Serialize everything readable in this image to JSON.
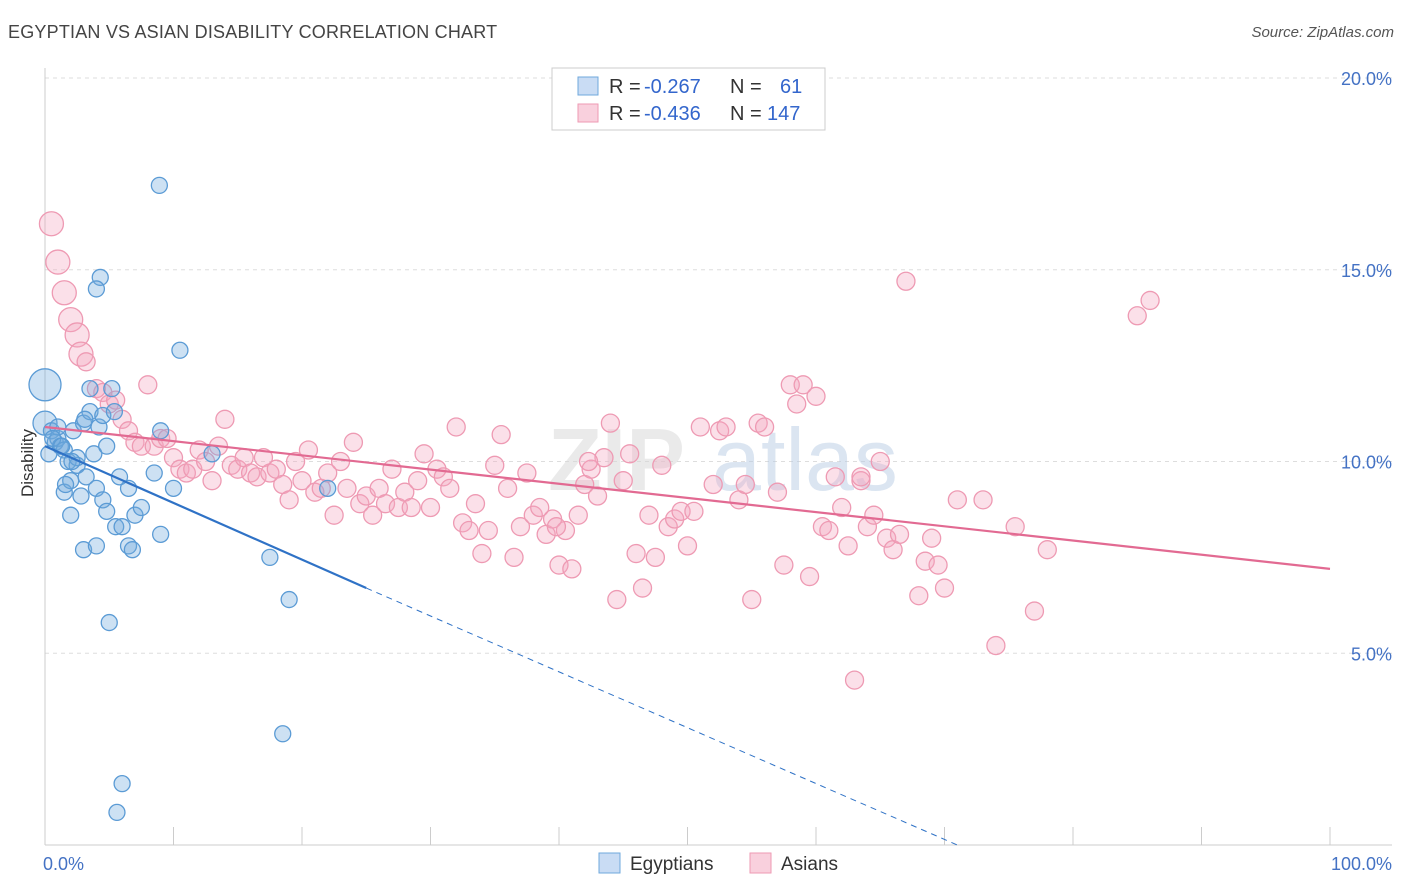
{
  "header": {
    "title": "EGYPTIAN VS ASIAN DISABILITY CORRELATION CHART",
    "source": "Source: ZipAtlas.com"
  },
  "watermark": {
    "zip": "ZIP",
    "atlas": "atlas"
  },
  "colors": {
    "egyptians": "#6fa8dc",
    "egyptians_line": "#2f72c6",
    "asians": "#ee9ab3",
    "asians_line": "#e26a92"
  },
  "legend": {
    "rows": [
      {
        "r_label": "R =",
        "r_value": "-0.267",
        "n_label": "N =",
        "n_value": "61"
      },
      {
        "r_label": "R =",
        "r_value": "-0.436",
        "n_label": "N =",
        "n_value": "147"
      }
    ],
    "bottom": [
      "Egyptians",
      "Asians"
    ]
  },
  "chart_data": {
    "type": "scatter",
    "title": "EGYPTIAN VS ASIAN DISABILITY CORRELATION CHART",
    "ylabel": "Disability",
    "xlabel": "",
    "xlim": [
      0,
      100
    ],
    "ylim": [
      0,
      20
    ],
    "x_tick_labels": [
      "0.0%",
      "100.0%"
    ],
    "y_ticks": [
      5,
      10,
      15,
      20
    ],
    "y_tick_labels": [
      "5.0%",
      "10.0%",
      "15.0%",
      "20.0%"
    ],
    "grid": "horizontal dashed",
    "legend_position": "top-center",
    "series": [
      {
        "name": "Egyptians",
        "R": -0.267,
        "N": 61,
        "trend": {
          "x_start": 0,
          "y_start": 10.4,
          "x_solid_end": 25,
          "y_solid_end": 6.7,
          "x_dashed_end": 71,
          "y_dashed_end": 0
        },
        "points": [
          [
            0,
            12
          ],
          [
            0,
            11
          ],
          [
            0.3,
            10.2
          ],
          [
            0.5,
            10.8
          ],
          [
            0.8,
            10.5
          ],
          [
            1,
            10.6
          ],
          [
            1.2,
            10.4
          ],
          [
            1.5,
            10.3
          ],
          [
            1.5,
            9.2
          ],
          [
            1.8,
            10
          ],
          [
            2,
            9.5
          ],
          [
            2,
            8.6
          ],
          [
            2.2,
            10.8
          ],
          [
            2.5,
            9.9
          ],
          [
            2.8,
            9.1
          ],
          [
            3,
            11
          ],
          [
            3,
            7.7
          ],
          [
            3.2,
            9.6
          ],
          [
            3.5,
            11.9
          ],
          [
            3.5,
            11.3
          ],
          [
            3.8,
            10.2
          ],
          [
            4,
            9.3
          ],
          [
            4,
            7.8
          ],
          [
            4.2,
            10.9
          ],
          [
            4.3,
            14.8
          ],
          [
            4.5,
            11.2
          ],
          [
            4.5,
            9
          ],
          [
            4.8,
            8.7
          ],
          [
            4.8,
            10.4
          ],
          [
            5,
            5.8
          ],
          [
            5.2,
            11.9
          ],
          [
            5.4,
            11.3
          ],
          [
            5.5,
            8.3
          ],
          [
            5.8,
            9.6
          ],
          [
            6,
            8.3
          ],
          [
            6,
            1.6
          ],
          [
            6.5,
            7.8
          ],
          [
            6.5,
            9.3
          ],
          [
            6.8,
            7.7
          ],
          [
            7,
            8.6
          ],
          [
            7.5,
            8.8
          ],
          [
            8.5,
            9.7
          ],
          [
            8.9,
            17.2
          ],
          [
            9,
            8.1
          ],
          [
            9,
            10.8
          ],
          [
            10,
            9.3
          ],
          [
            10.5,
            12.9
          ],
          [
            13,
            10.2
          ],
          [
            17.5,
            7.5
          ],
          [
            18.5,
            2.9
          ],
          [
            19,
            6.4
          ],
          [
            22,
            9.3
          ],
          [
            4,
            14.5
          ],
          [
            1,
            10.9
          ],
          [
            2.5,
            10.1
          ],
          [
            3.1,
            11.1
          ],
          [
            1.6,
            9.4
          ],
          [
            0.6,
            10.6
          ],
          [
            2.1,
            10
          ],
          [
            5.6,
            0.85
          ],
          [
            1.3,
            10.4
          ]
        ]
      },
      {
        "name": "Asians",
        "R": -0.436,
        "N": 147,
        "trend": {
          "x_start": 0,
          "y_start": 10.9,
          "x_end": 100,
          "y_end": 7.2
        },
        "points": [
          [
            0.5,
            16.2
          ],
          [
            1,
            15.2
          ],
          [
            1.5,
            14.4
          ],
          [
            2,
            13.7
          ],
          [
            2.5,
            13.3
          ],
          [
            2.8,
            12.8
          ],
          [
            3.2,
            12.6
          ],
          [
            4,
            11.9
          ],
          [
            4.5,
            11.8
          ],
          [
            5,
            11.5
          ],
          [
            5.5,
            11.6
          ],
          [
            6,
            11.1
          ],
          [
            6.5,
            10.8
          ],
          [
            7,
            10.5
          ],
          [
            7.5,
            10.4
          ],
          [
            8,
            12
          ],
          [
            8.5,
            10.4
          ],
          [
            9,
            10.6
          ],
          [
            9.5,
            10.6
          ],
          [
            10,
            10.1
          ],
          [
            10.5,
            9.8
          ],
          [
            11,
            9.7
          ],
          [
            11.5,
            9.8
          ],
          [
            12,
            10.3
          ],
          [
            12.5,
            10
          ],
          [
            13,
            9.5
          ],
          [
            13.5,
            10.4
          ],
          [
            14,
            11.1
          ],
          [
            14.5,
            9.9
          ],
          [
            15,
            9.8
          ],
          [
            15.5,
            10.1
          ],
          [
            16,
            9.7
          ],
          [
            16.5,
            9.6
          ],
          [
            17,
            10.1
          ],
          [
            17.5,
            9.7
          ],
          [
            18,
            9.8
          ],
          [
            18.5,
            9.4
          ],
          [
            19,
            9
          ],
          [
            19.5,
            10
          ],
          [
            20,
            9.5
          ],
          [
            20.5,
            10.3
          ],
          [
            21,
            9.2
          ],
          [
            21.5,
            9.3
          ],
          [
            22,
            9.7
          ],
          [
            22.5,
            8.6
          ],
          [
            23,
            10
          ],
          [
            23.5,
            9.3
          ],
          [
            24,
            10.5
          ],
          [
            24.5,
            8.9
          ],
          [
            25,
            9.1
          ],
          [
            25.5,
            8.6
          ],
          [
            26,
            9.3
          ],
          [
            26.5,
            8.9
          ],
          [
            27,
            9.8
          ],
          [
            27.5,
            8.8
          ],
          [
            28,
            9.2
          ],
          [
            28.5,
            8.8
          ],
          [
            29,
            9.5
          ],
          [
            29.5,
            10.2
          ],
          [
            30,
            8.8
          ],
          [
            30.5,
            9.8
          ],
          [
            31,
            9.6
          ],
          [
            31.5,
            9.3
          ],
          [
            32,
            10.9
          ],
          [
            32.5,
            8.4
          ],
          [
            33,
            8.2
          ],
          [
            33.5,
            8.9
          ],
          [
            34,
            7.6
          ],
          [
            34.5,
            8.2
          ],
          [
            35,
            9.9
          ],
          [
            35.5,
            10.7
          ],
          [
            36,
            9.3
          ],
          [
            36.5,
            7.5
          ],
          [
            37,
            8.3
          ],
          [
            37.5,
            9.7
          ],
          [
            38,
            8.6
          ],
          [
            38.5,
            8.8
          ],
          [
            39,
            8.1
          ],
          [
            39.5,
            8.5
          ],
          [
            40,
            7.3
          ],
          [
            40.5,
            8.2
          ],
          [
            41,
            7.2
          ],
          [
            41.5,
            8.6
          ],
          [
            42,
            9.4
          ],
          [
            42.5,
            9.8
          ],
          [
            43,
            9.1
          ],
          [
            43.5,
            10.1
          ],
          [
            44,
            11
          ],
          [
            44.5,
            6.4
          ],
          [
            45,
            9.5
          ],
          [
            45.5,
            10.2
          ],
          [
            46,
            7.6
          ],
          [
            46.5,
            6.7
          ],
          [
            47,
            8.6
          ],
          [
            47.5,
            7.5
          ],
          [
            48,
            9.9
          ],
          [
            48.5,
            8.3
          ],
          [
            49,
            8.5
          ],
          [
            49.5,
            8.7
          ],
          [
            50,
            7.8
          ],
          [
            50.5,
            8.7
          ],
          [
            51,
            10.9
          ],
          [
            52,
            9.4
          ],
          [
            52.5,
            10.8
          ],
          [
            53,
            10.9
          ],
          [
            54,
            9
          ],
          [
            54.5,
            9.4
          ],
          [
            55,
            6.4
          ],
          [
            55.5,
            11
          ],
          [
            56,
            10.9
          ],
          [
            57,
            9.2
          ],
          [
            57.5,
            7.3
          ],
          [
            58,
            12
          ],
          [
            58.5,
            11.5
          ],
          [
            59,
            12
          ],
          [
            59.5,
            7
          ],
          [
            60,
            11.7
          ],
          [
            60.5,
            8.3
          ],
          [
            61,
            8.2
          ],
          [
            61.5,
            9.6
          ],
          [
            62,
            8.8
          ],
          [
            62.5,
            7.8
          ],
          [
            63,
            4.3
          ],
          [
            63.5,
            9.5
          ],
          [
            64,
            8.3
          ],
          [
            64.5,
            8.6
          ],
          [
            65,
            10
          ],
          [
            65.5,
            8
          ],
          [
            66,
            7.7
          ],
          [
            66.5,
            8.1
          ],
          [
            67,
            14.7
          ],
          [
            68,
            6.5
          ],
          [
            68.5,
            7.4
          ],
          [
            69,
            8.0
          ],
          [
            69.5,
            7.3
          ],
          [
            70,
            6.7
          ],
          [
            71,
            9
          ],
          [
            73,
            9
          ],
          [
            74,
            5.2
          ],
          [
            75.5,
            8.3
          ],
          [
            77,
            6.1
          ],
          [
            78,
            7.7
          ],
          [
            85,
            13.8
          ],
          [
            86,
            14.2
          ],
          [
            63.5,
            9.6
          ],
          [
            42.3,
            10
          ],
          [
            39.8,
            8.3
          ]
        ]
      }
    ]
  }
}
